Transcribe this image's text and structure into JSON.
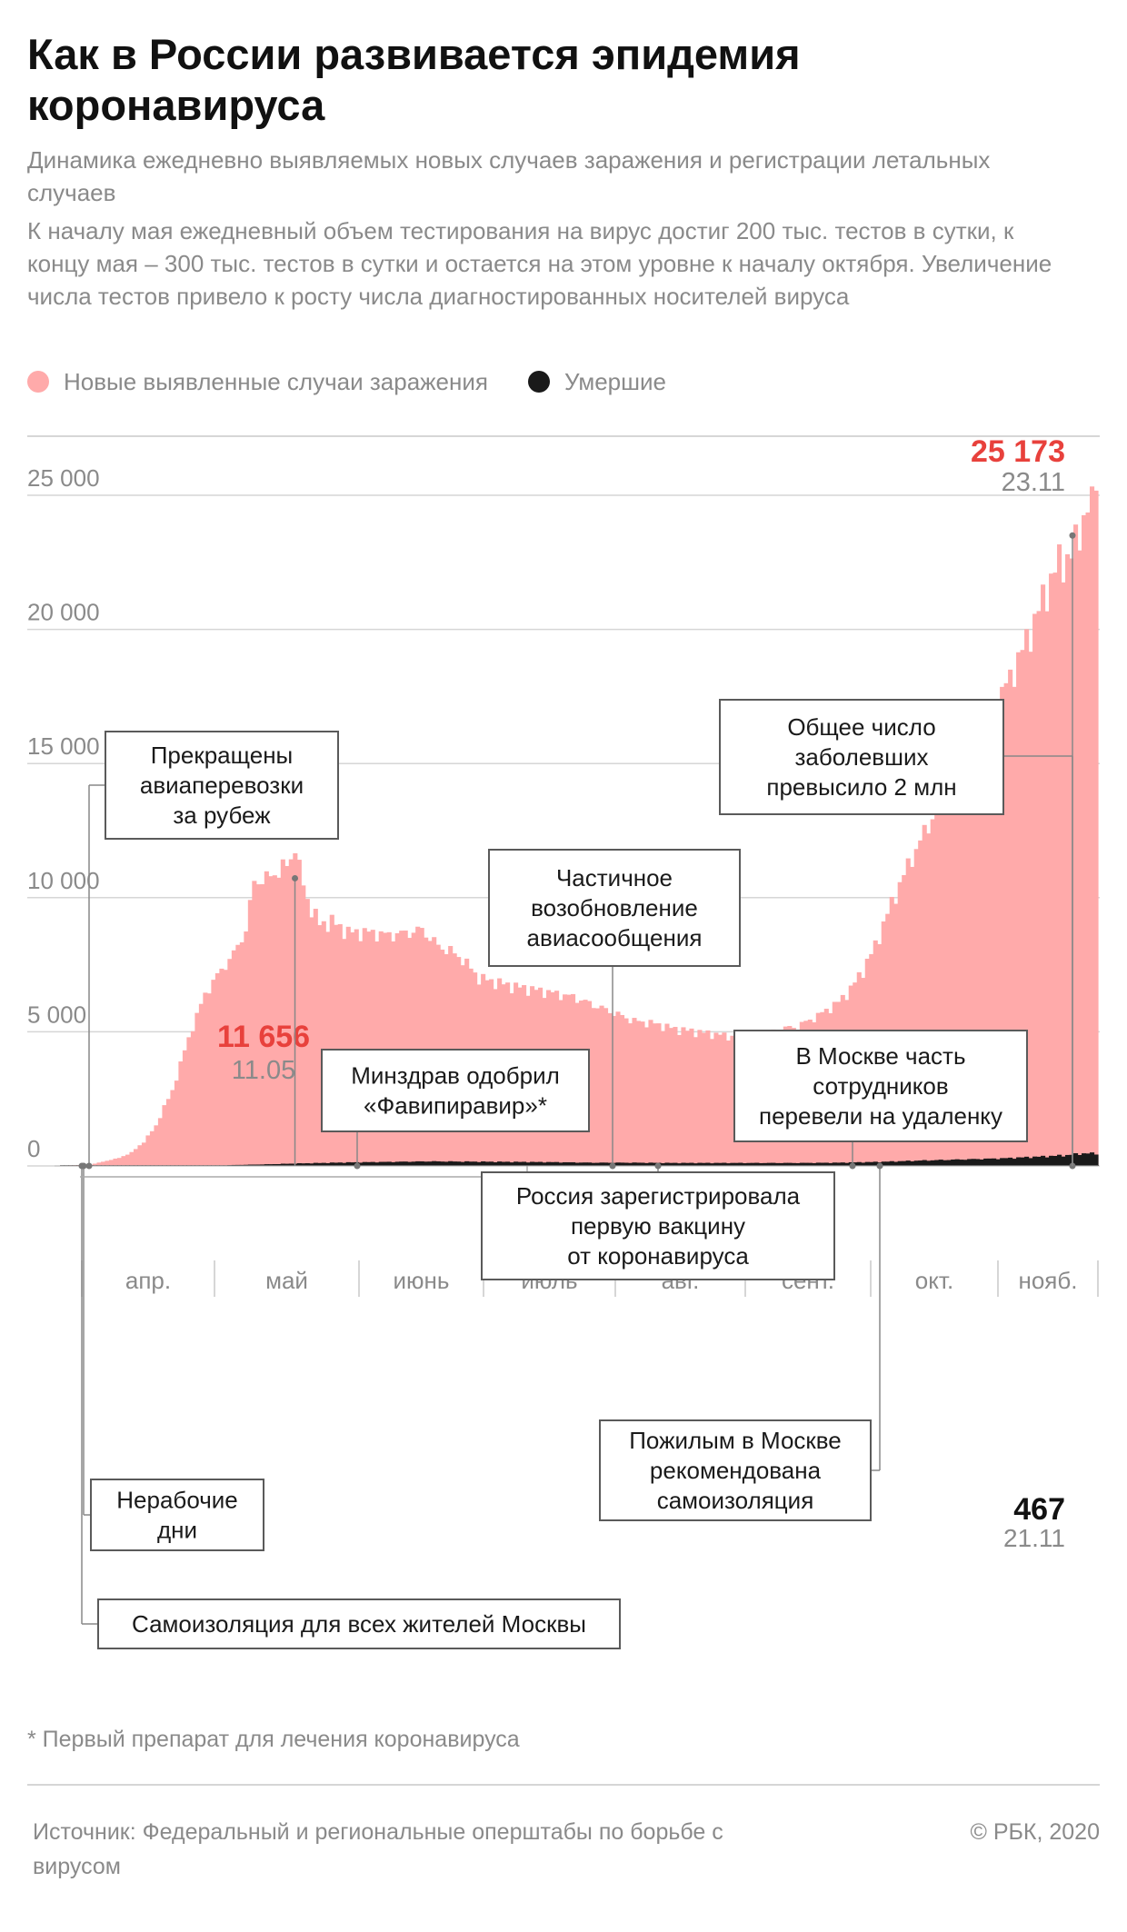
{
  "header": {
    "title": "Как в России развивается эпидемия коронавируса",
    "subtitle": "Динамика ежедневно выявляемых новых случаев заражения и регистрации летальных случаев",
    "description": "К началу мая ежедневный объем тестирования на вирус достиг 200 тыс. тестов в сутки, к концу мая – 300 тыс. тестов в сутки и остается на этом уровне к началу октября. Увеличение числа тестов привело к росту числа диагностированных носителей вируса"
  },
  "legend": {
    "cases_label": "Новые выявленные случаи заражения",
    "deaths_label": "Умершие"
  },
  "colors": {
    "cases": "#ffaaaa",
    "deaths": "#1a1a1a",
    "highlight": "#e8413c",
    "muted": "#8a8a8a",
    "grid": "#d6d6d6",
    "box_border": "#5a5a5a"
  },
  "chart_data": {
    "type": "bar",
    "title": "Как в России развивается эпидемия коронавируса",
    "ylim": [
      0,
      26500
    ],
    "y_ticks": [
      0,
      5000,
      10000,
      15000,
      20000,
      25000
    ],
    "y_tick_labels": [
      "0",
      "5 000",
      "10 000",
      "15 000",
      "20 000",
      "25 000"
    ],
    "month_labels": [
      "апр.",
      "май",
      "июнь",
      "июль",
      "авг.",
      "сент.",
      "окт.",
      "нояб."
    ],
    "x_start": "2020-03-15",
    "x_end": "2020-11-23",
    "series": [
      {
        "name": "Новые выявленные случаи заражения",
        "keypoints": [
          [
            0,
            10
          ],
          [
            7,
            50
          ],
          [
            14,
            300
          ],
          [
            17,
            500
          ],
          [
            20,
            900
          ],
          [
            23,
            1500
          ],
          [
            25,
            2200
          ],
          [
            27,
            2800
          ],
          [
            30,
            4300
          ],
          [
            32,
            5200
          ],
          [
            35,
            6400
          ],
          [
            38,
            7100
          ],
          [
            42,
            7900
          ],
          [
            45,
            8800
          ],
          [
            47,
            10600
          ],
          [
            50,
            10700
          ],
          [
            52,
            10900
          ],
          [
            55,
            11200
          ],
          [
            57,
            11656
          ],
          [
            60,
            9900
          ],
          [
            63,
            9000
          ],
          [
            66,
            9100
          ],
          [
            70,
            8700
          ],
          [
            75,
            8700
          ],
          [
            80,
            8600
          ],
          [
            85,
            8700
          ],
          [
            88,
            8800
          ],
          [
            92,
            8200
          ],
          [
            95,
            8000
          ],
          [
            98,
            7700
          ],
          [
            102,
            7000
          ],
          [
            110,
            6700
          ],
          [
            118,
            6500
          ],
          [
            125,
            6300
          ],
          [
            130,
            6000
          ],
          [
            135,
            5700
          ],
          [
            140,
            5400
          ],
          [
            145,
            5300
          ],
          [
            150,
            5100
          ],
          [
            155,
            5000
          ],
          [
            160,
            4900
          ],
          [
            165,
            4800
          ],
          [
            168,
            4700
          ],
          [
            172,
            4900
          ],
          [
            176,
            5100
          ],
          [
            180,
            5200
          ],
          [
            185,
            5600
          ],
          [
            190,
            6100
          ],
          [
            193,
            6600
          ],
          [
            196,
            7300
          ],
          [
            199,
            8200
          ],
          [
            202,
            9400
          ],
          [
            205,
            10500
          ],
          [
            208,
            11500
          ],
          [
            211,
            12400
          ],
          [
            214,
            13300
          ],
          [
            217,
            14200
          ],
          [
            220,
            15100
          ],
          [
            223,
            16000
          ],
          [
            226,
            16600
          ],
          [
            229,
            17300
          ],
          [
            232,
            18200
          ],
          [
            235,
            19200
          ],
          [
            238,
            20300
          ],
          [
            241,
            21500
          ],
          [
            244,
            22500
          ],
          [
            247,
            22700
          ],
          [
            250,
            24200
          ],
          [
            252,
            24600
          ],
          [
            253,
            25173
          ]
        ],
        "peak_spring": {
          "value_label": "11 656",
          "date_label": "11.05",
          "day": 57,
          "value": 11656
        },
        "peak_last": {
          "value_label": "25 173",
          "date_label": "23.11",
          "day": 253,
          "value": 25173
        }
      },
      {
        "name": "Умершие",
        "keypoints": [
          [
            0,
            0
          ],
          [
            20,
            2
          ],
          [
            30,
            8
          ],
          [
            40,
            28
          ],
          [
            50,
            60
          ],
          [
            57,
            90
          ],
          [
            70,
            130
          ],
          [
            80,
            150
          ],
          [
            90,
            170
          ],
          [
            100,
            160
          ],
          [
            110,
            150
          ],
          [
            120,
            140
          ],
          [
            130,
            120
          ],
          [
            140,
            120
          ],
          [
            150,
            110
          ],
          [
            160,
            110
          ],
          [
            170,
            110
          ],
          [
            180,
            110
          ],
          [
            190,
            120
          ],
          [
            200,
            150
          ],
          [
            210,
            200
          ],
          [
            220,
            240
          ],
          [
            230,
            280
          ],
          [
            240,
            350
          ],
          [
            246,
            400
          ],
          [
            250,
            467
          ],
          [
            253,
            460
          ]
        ],
        "peak_last": {
          "value_label": "467",
          "date_label": "21.11",
          "day": 251,
          "value": 467
        }
      }
    ],
    "annotations": [
      {
        "id": "flights",
        "text": [
          "Прекращены",
          "авиаперевозки",
          "за рубеж"
        ],
        "day": 12
      },
      {
        "id": "nonwork",
        "text": [
          "Нерабочие",
          "дни"
        ],
        "day": 15
      },
      {
        "id": "moscow-iso",
        "text": [
          "Самоизоляция для всех жителей Москвы"
        ],
        "day": 15
      },
      {
        "id": "favipiravir",
        "text": [
          "Минздрав одобрил",
          "«Фавипиравир»*"
        ],
        "day": 82
      },
      {
        "id": "flights-resume",
        "text": [
          "Частичное",
          "возобновление",
          "авиасообщения"
        ],
        "day": 154
      },
      {
        "id": "vaccine",
        "text": [
          "Россия зарегистрировала",
          "первую вакцину",
          "от коронавируса"
        ],
        "day": 163
      },
      {
        "id": "remote",
        "text": [
          "В Москве часть",
          "сотрудников",
          "перевели на удаленку"
        ],
        "day": 220
      },
      {
        "id": "elderly",
        "text": [
          "Пожилым в Москве",
          "рекомендована",
          "самоизоляция"
        ],
        "day": 227
      },
      {
        "id": "two-million",
        "text": [
          "Общее число",
          "заболевших",
          "превысило 2 млн"
        ],
        "day": 251
      }
    ]
  },
  "footer": {
    "footnote": "* Первый препарат для лечения коронавируса",
    "source": "Источник: Федеральный и региональные оперштабы по борьбе с вирусом",
    "copyright": "© РБК, 2020"
  }
}
